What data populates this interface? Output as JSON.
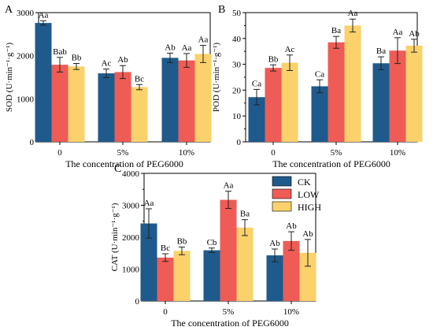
{
  "colors": {
    "CK": "#1f5a8c",
    "LOW": "#ef5b55",
    "HIGH": "#fbd16b"
  },
  "legend": [
    "CK",
    "LOW",
    "HIGH"
  ],
  "chart_data": [
    {
      "type": "bar",
      "panel": "A",
      "title": "",
      "ylabel": "SOD (U·min⁻¹·g⁻¹)",
      "xlabel": "The concentration of PEG6000",
      "categories": [
        "0",
        "5%",
        "10%"
      ],
      "ylim": [
        0,
        3000
      ],
      "yticks": [
        "0",
        "1000",
        "2000",
        "3000"
      ],
      "yticks_values": [
        0,
        1000,
        2000,
        3000
      ],
      "series": [
        {
          "name": "CK",
          "values": [
            2760,
            1590,
            1950
          ],
          "errors": [
            50,
            100,
            110
          ],
          "labels": [
            "Aa",
            "Ac",
            "Ab"
          ]
        },
        {
          "name": "LOW",
          "values": [
            1790,
            1620,
            1890
          ],
          "errors": [
            170,
            150,
            160
          ],
          "labels": [
            "Bab",
            "Ab",
            "Aa"
          ]
        },
        {
          "name": "HIGH",
          "values": [
            1750,
            1270,
            2040
          ],
          "errors": [
            70,
            60,
            200
          ],
          "labels": [
            "Bb",
            "Bc",
            "Aa"
          ]
        }
      ]
    },
    {
      "type": "bar",
      "panel": "B",
      "title": "",
      "ylabel": "POD (U·min⁻¹·g⁻¹)",
      "xlabel": "The concentration of PEG6000",
      "categories": [
        "0",
        "5%",
        "10%"
      ],
      "ylim": [
        0,
        50
      ],
      "yticks": [
        "0",
        "10",
        "20",
        "30",
        "40",
        "50"
      ],
      "yticks_values": [
        0,
        10,
        20,
        30,
        40,
        50
      ],
      "series": [
        {
          "name": "CK",
          "values": [
            17.3,
            21.5,
            30.4
          ],
          "errors": [
            3.0,
            2.5,
            2.5
          ],
          "labels": [
            "Ca",
            "Ca",
            "Ba"
          ]
        },
        {
          "name": "LOW",
          "values": [
            28.6,
            38.5,
            35.3
          ],
          "errors": [
            1.2,
            2.3,
            5.0
          ],
          "labels": [
            "Bb",
            "Ba",
            "Aa"
          ]
        },
        {
          "name": "HIGH",
          "values": [
            30.6,
            45.0,
            37.2
          ],
          "errors": [
            3.0,
            2.5,
            2.5
          ],
          "labels": [
            "Ac",
            "Aa",
            "Ab"
          ]
        }
      ]
    },
    {
      "type": "bar",
      "panel": "C",
      "title": "",
      "ylabel": "CAT (U·min⁻¹·g⁻¹)",
      "xlabel": "The concentration of PEG6000",
      "categories": [
        "0",
        "5%",
        "10%"
      ],
      "ylim": [
        0,
        4000
      ],
      "yticks": [
        "0",
        "1000",
        "2000",
        "3000",
        "4000"
      ],
      "yticks_values": [
        0,
        1000,
        2000,
        3000,
        4000
      ],
      "legend_position": "top-right",
      "series": [
        {
          "name": "CK",
          "values": [
            2430,
            1590,
            1430
          ],
          "errors": [
            460,
            70,
            200
          ],
          "labels": [
            "Aa",
            "Cb",
            "Ab"
          ]
        },
        {
          "name": "LOW",
          "values": [
            1360,
            3170,
            1880
          ],
          "errors": [
            120,
            270,
            290
          ],
          "labels": [
            "Bc",
            "Aa",
            "Ab"
          ]
        },
        {
          "name": "HIGH",
          "values": [
            1570,
            2300,
            1510
          ],
          "errors": [
            120,
            250,
            420
          ],
          "labels": [
            "Bb",
            "Ba",
            "Ab"
          ]
        }
      ]
    }
  ]
}
